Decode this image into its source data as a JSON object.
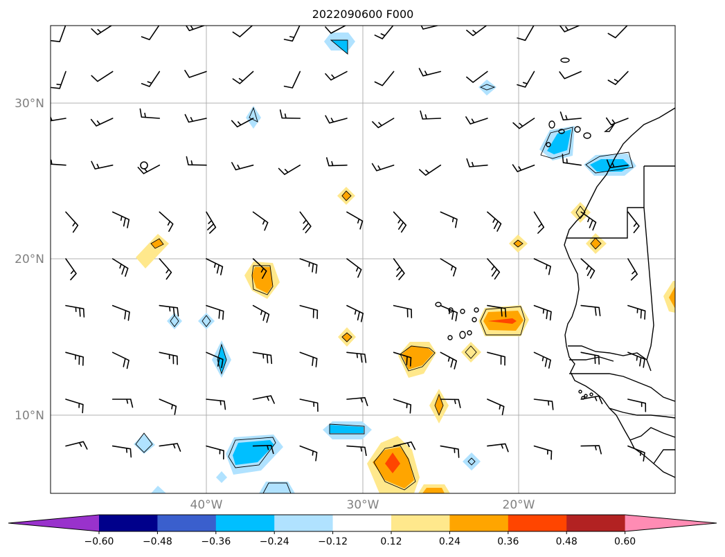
{
  "title": "2022090600 F000",
  "map": {
    "lat_labels": [
      "30°N",
      "20°N",
      "10°N"
    ],
    "lon_labels": [
      "40°W",
      "30°W",
      "20°W"
    ],
    "gridlines": true
  },
  "colorbar": {
    "orientation": "horizontal",
    "extend": "both",
    "tick_labels": [
      "−0.60",
      "−0.48",
      "−0.36",
      "−0.24",
      "−0.12",
      "0.12",
      "0.24",
      "0.36",
      "0.48",
      "0.60"
    ],
    "colors": [
      "#9932cc",
      "#00008b",
      "#3a5fcd",
      "#00bfff",
      "#b0e2ff",
      "#ffffff",
      "#ffe88c",
      "#ffa500",
      "#ff4500",
      "#b22222",
      "#ff8cb4"
    ]
  },
  "barbs": {
    "longitudes": [
      -49,
      -46,
      -43,
      -40,
      -37,
      -34,
      -31,
      -28,
      -25,
      -22,
      -19,
      -16,
      -13
    ],
    "latitudes": [
      35,
      32,
      29,
      26,
      23,
      20,
      17,
      14,
      11,
      8
    ],
    "style": "black wind barbs (knots)"
  }
}
